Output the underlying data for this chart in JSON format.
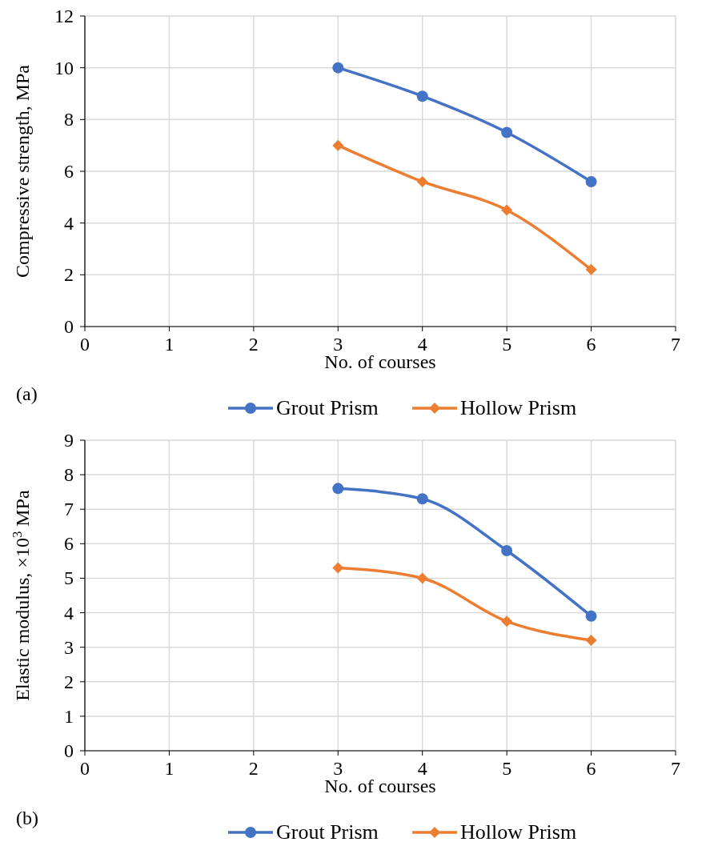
{
  "chart_data": [
    {
      "type": "line",
      "xlabel": "No. of courses",
      "ylabel": "Compressive strength, MPa",
      "x": [
        3,
        4,
        5,
        6
      ],
      "xlim": [
        0,
        7
      ],
      "xticks": [
        0,
        1,
        2,
        3,
        4,
        5,
        6,
        7
      ],
      "ylim": [
        0,
        12
      ],
      "yticks": [
        0,
        2,
        4,
        6,
        8,
        10,
        12
      ],
      "grid": true,
      "legend": "bottom",
      "annotations": [
        "(a)"
      ],
      "series": [
        {
          "name": "Grout Prism",
          "color": "#4472c4",
          "marker": "circle",
          "values": [
            10.0,
            8.9,
            7.5,
            5.6
          ]
        },
        {
          "name": "Hollow Prism",
          "color": "#ed7d31",
          "marker": "diamond",
          "values": [
            7.0,
            5.6,
            4.5,
            2.2
          ]
        }
      ]
    },
    {
      "type": "line",
      "xlabel": "No. of courses",
      "ylabel": "Elastic modulus, ×10$^{3}$ MPa",
      "x": [
        3,
        4,
        5,
        6
      ],
      "xlim": [
        0,
        7
      ],
      "xticks": [
        0,
        1,
        2,
        3,
        4,
        5,
        6,
        7
      ],
      "ylim": [
        0,
        9
      ],
      "yticks": [
        0,
        1,
        2,
        3,
        4,
        5,
        6,
        7,
        8,
        9
      ],
      "grid": true,
      "legend": "bottom",
      "annotations": [
        "(b)"
      ],
      "series": [
        {
          "name": "Grout Prism",
          "color": "#4472c4",
          "marker": "circle",
          "values": [
            7.6,
            7.3,
            5.8,
            3.9
          ]
        },
        {
          "name": "Hollow Prism",
          "color": "#ed7d31",
          "marker": "diamond",
          "values": [
            5.3,
            5.0,
            3.75,
            3.2
          ]
        }
      ]
    }
  ]
}
